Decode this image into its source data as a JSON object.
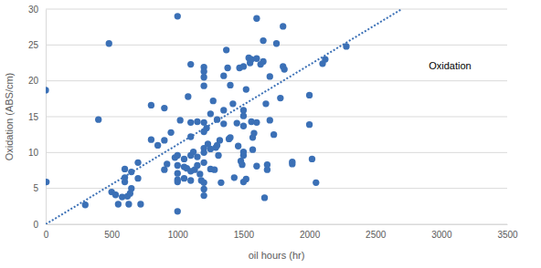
{
  "chart_data": {
    "type": "scatter",
    "title": "Oxidation",
    "x_label": "oil hours (hr)",
    "y_label": "Oxidation (ABS/cm)",
    "xlim": [
      0,
      3500
    ],
    "xticks": [
      0,
      500,
      1000,
      1500,
      2000,
      2500,
      3000,
      3500
    ],
    "ylim": [
      0,
      30
    ],
    "yticks": [
      0,
      5,
      10,
      15,
      20,
      25,
      30
    ],
    "grid": "y",
    "series": [
      {
        "type": "scatter",
        "marker": "circle",
        "color": "#3b70b6",
        "x": [
          0,
          5,
          300,
          400,
          480,
          500,
          530,
          550,
          580,
          600,
          600,
          600,
          620,
          630,
          650,
          650,
          640,
          700,
          700,
          720,
          800,
          800,
          850,
          900,
          900,
          900,
          920,
          950,
          980,
          1000,
          1000,
          1000,
          1000,
          1000,
          1000,
          1000,
          1020,
          1050,
          1050,
          1050,
          1070,
          1080,
          1100,
          1100,
          1100,
          1100,
          1100,
          1100,
          1120,
          1130,
          1150,
          1150,
          1150,
          1170,
          1180,
          1200,
          1200,
          1200,
          1200,
          1200,
          1200,
          1200,
          1200,
          1200,
          1200,
          1200,
          1200,
          1220,
          1230,
          1250,
          1250,
          1250,
          1270,
          1280,
          1290,
          1300,
          1300,
          1310,
          1320,
          1330,
          1350,
          1350,
          1350,
          1370,
          1380,
          1390,
          1400,
          1400,
          1420,
          1430,
          1450,
          1460,
          1470,
          1480,
          1490,
          1500,
          1500,
          1500,
          1500,
          1500,
          1500,
          1500,
          1520,
          1520,
          1540,
          1550,
          1560,
          1560,
          1570,
          1570,
          1580,
          1600,
          1600,
          1600,
          1600,
          1630,
          1650,
          1650,
          1660,
          1670,
          1680,
          1680,
          1700,
          1700,
          1730,
          1750,
          1780,
          1800,
          1800,
          1810,
          1870,
          1870,
          2000,
          2000,
          2020,
          2050,
          2100,
          2120,
          2280
        ],
        "values": [
          18.7,
          5.9,
          2.7,
          14.6,
          25.2,
          4.5,
          4.1,
          2.8,
          3.8,
          5.9,
          7.7,
          6.5,
          3.9,
          2.8,
          7.3,
          5.0,
          4.3,
          8.6,
          6.4,
          2.8,
          11.8,
          16.6,
          11.0,
          11.7,
          16.2,
          7.6,
          8.4,
          12.8,
          9.3,
          29.0,
          1.8,
          9.6,
          8.2,
          7.1,
          6.2,
          5.9,
          14.5,
          9.1,
          8.0,
          6.4,
          7.8,
          17.8,
          22.3,
          14.2,
          12.2,
          9.6,
          7.4,
          6.1,
          10.1,
          7.6,
          9.4,
          8.2,
          14.3,
          7.0,
          6.1,
          21.9,
          21.3,
          20.5,
          19.3,
          14.2,
          12.9,
          10.6,
          10.0,
          8.6,
          5.8,
          4.9,
          4.0,
          13.4,
          11.2,
          7.7,
          15.4,
          10.5,
          17.2,
          7.6,
          10.7,
          14.6,
          11.0,
          9.6,
          11.7,
          5.8,
          20.7,
          15.9,
          14.0,
          24.3,
          21.8,
          11.9,
          19.4,
          12.1,
          16.8,
          6.5,
          14.1,
          10.9,
          21.8,
          8.8,
          8.3,
          15.9,
          15.1,
          13.7,
          10.1,
          9.6,
          5.9,
          22.0,
          18.8,
          6.3,
          23.2,
          22.5,
          23.0,
          14.3,
          12.1,
          10.4,
          12.7,
          28.7,
          23.1,
          14.2,
          8.1,
          22.3,
          25.6,
          22.7,
          3.7,
          16.8,
          7.6,
          8.3,
          14.5,
          20.6,
          12.5,
          25.2,
          17.6,
          27.6,
          22.0,
          21.6,
          8.7,
          8.4,
          13.9,
          18.0,
          9.1,
          5.8,
          22.4,
          23.0,
          24.8
        ]
      },
      {
        "type": "line",
        "line_style": "dotted",
        "color": "#3b70b6",
        "x": [
          0,
          2700
        ],
        "values": [
          0,
          30
        ]
      }
    ]
  }
}
